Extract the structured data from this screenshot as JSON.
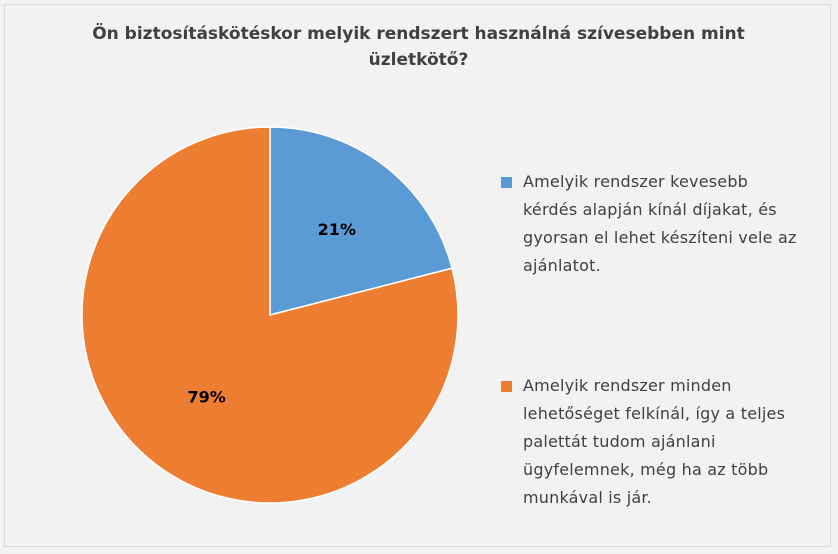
{
  "chart_data": {
    "type": "pie",
    "title": "Ön biztosításkötéskor melyik rendszert használná szívesebben mint üzletkötő?",
    "title_lines": [
      "Ön biztosításkötéskor melyik rendszert használná szívesebben mint",
      "üzletkötő?"
    ],
    "categories": [
      "Amelyik rendszer kevesebb kérdés alapján kínál díjakat, és gyorsan el lehet készíteni vele az ajánlatot.",
      "Amelyik rendszer minden lehetőséget felkínál, így a teljes palettát tudom ajánlani ügyfelemnek, még ha az több munkával is jár."
    ],
    "values": [
      21,
      79
    ],
    "data_labels": [
      "21%",
      "79%"
    ],
    "colors": [
      "#5b9bd5",
      "#ed7d31"
    ],
    "legend_position": "right"
  },
  "legend": {
    "items": [
      {
        "lines": [
          "Amelyik rendszer kevesebb",
          "kérdés alapján kínál díjakat, és",
          "gyorsan el lehet készíteni vele az",
          "ajánlatot."
        ]
      },
      {
        "lines": [
          "Amelyik rendszer minden",
          "lehetőséget felkínál, így a teljes",
          "palettát tudom ajánlani",
          "ügyfelemnek, még ha az több",
          "munkával is jár."
        ]
      }
    ]
  }
}
